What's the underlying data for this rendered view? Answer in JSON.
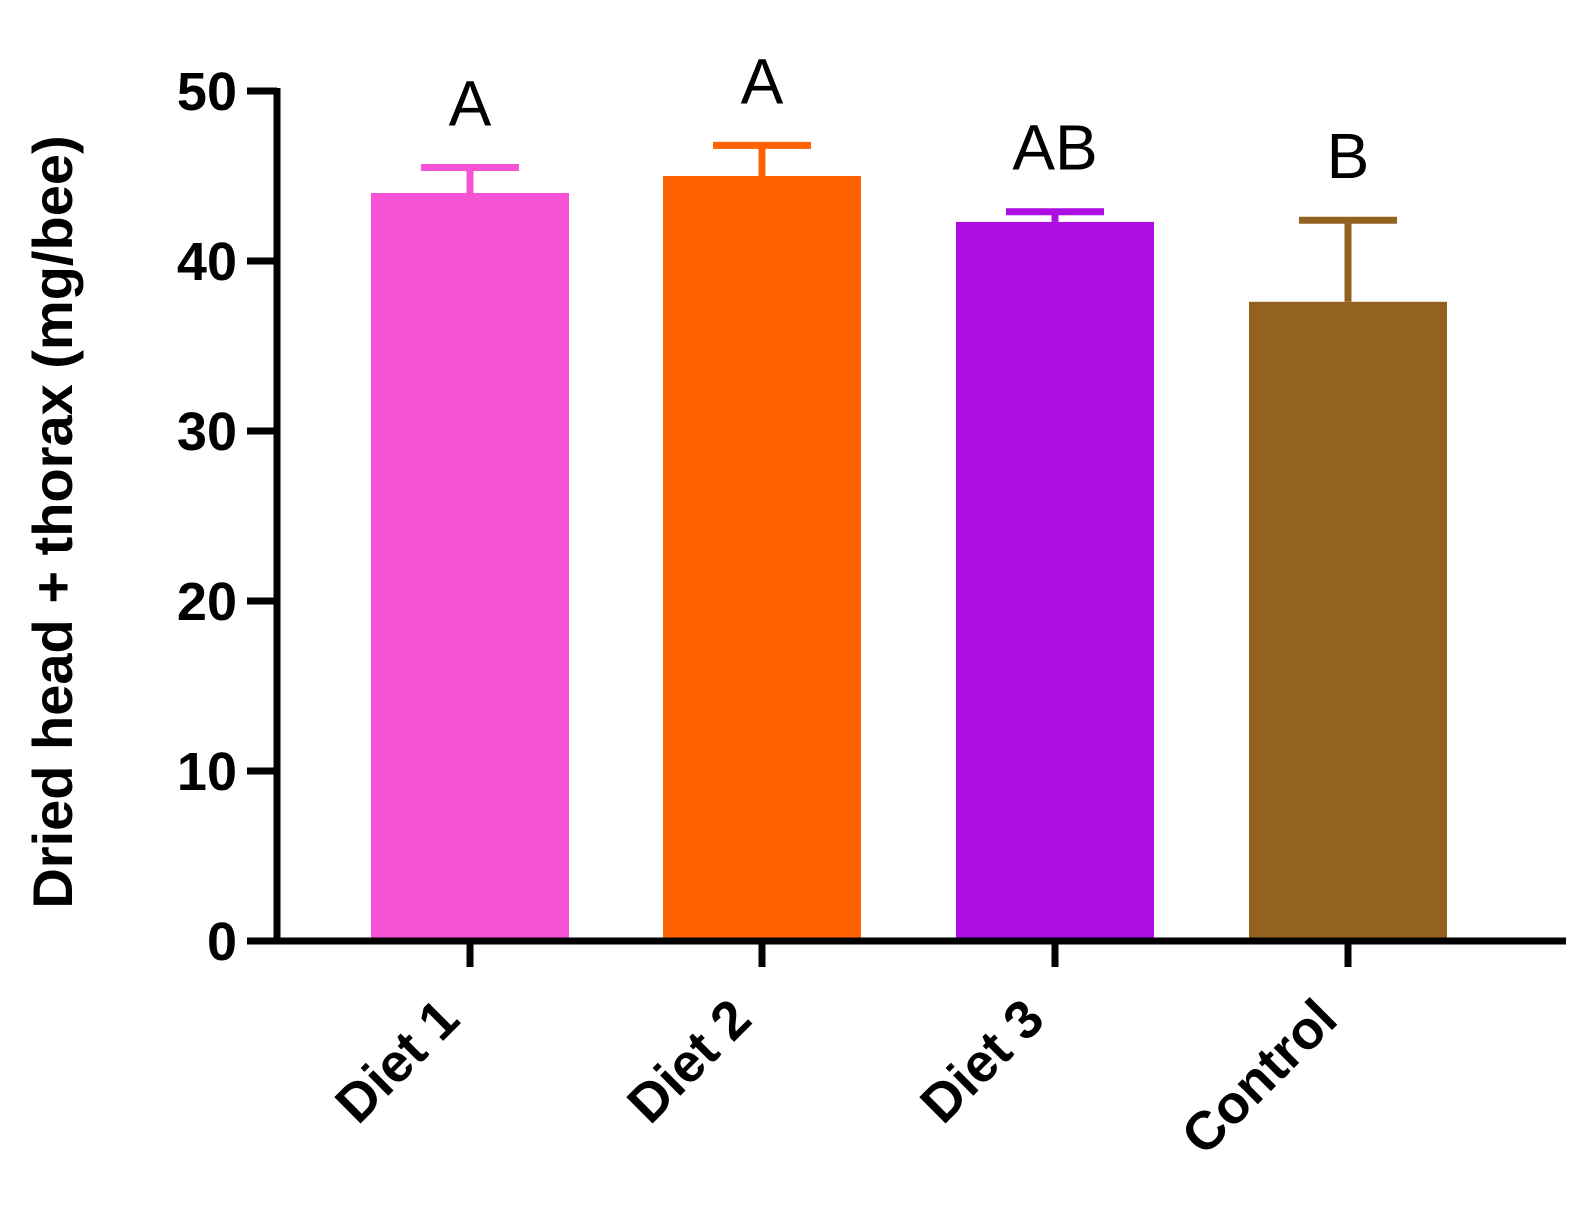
{
  "chart_data": {
    "type": "bar",
    "title": "",
    "xlabel": "",
    "ylabel": "Dried head + thorax (mg/bee)",
    "ylim": [
      0,
      50
    ],
    "yticks": [
      0,
      10,
      20,
      30,
      40,
      50
    ],
    "grid": false,
    "categories": [
      "Diet 1",
      "Diet 2",
      "Diet 3",
      "Control"
    ],
    "values": [
      44,
      45,
      42.3,
      37.6
    ],
    "error_upper": [
      1.5,
      1.8,
      0.6,
      4.8
    ],
    "significance": [
      "A",
      "A",
      "AB",
      "B"
    ],
    "colors": [
      "#f752d6",
      "#ff6200",
      "#ad0ce3",
      "#946220"
    ]
  }
}
